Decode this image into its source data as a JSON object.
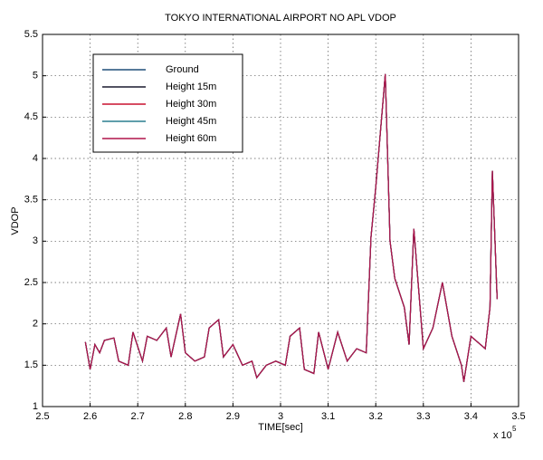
{
  "chart_data": {
    "type": "line",
    "title": "TOKYO INTERNATIONAL AIRPORT NO APL VDOP",
    "xlabel": "TIME[sec]",
    "ylabel": "VDOP",
    "x_multiplier": "x 10",
    "x_exponent": "5",
    "x": [
      2.59,
      2.6,
      2.61,
      2.62,
      2.63,
      2.65,
      2.66,
      2.68,
      2.69,
      2.71,
      2.72,
      2.74,
      2.76,
      2.77,
      2.79,
      2.8,
      2.82,
      2.84,
      2.85,
      2.87,
      2.88,
      2.9,
      2.92,
      2.94,
      2.95,
      2.97,
      2.99,
      3.01,
      3.02,
      3.04,
      3.05,
      3.07,
      3.08,
      3.1,
      3.12,
      3.14,
      3.16,
      3.18,
      3.19,
      3.2,
      3.22,
      3.23,
      3.24,
      3.26,
      3.27,
      3.28,
      3.3,
      3.32,
      3.34,
      3.36,
      3.38,
      3.385,
      3.4,
      3.43,
      3.44,
      3.445,
      3.455
    ],
    "series": [
      {
        "name": "Ground",
        "color": "#1f4e79",
        "values": [
          1.78,
          1.45,
          1.75,
          1.65,
          1.8,
          1.83,
          1.55,
          1.5,
          1.9,
          1.55,
          1.85,
          1.8,
          1.95,
          1.6,
          2.12,
          1.65,
          1.55,
          1.6,
          1.95,
          2.05,
          1.6,
          1.75,
          1.5,
          1.55,
          1.35,
          1.5,
          1.55,
          1.5,
          1.85,
          1.95,
          1.45,
          1.4,
          1.9,
          1.45,
          1.9,
          1.55,
          1.7,
          1.65,
          3.05,
          3.65,
          5.02,
          3.0,
          2.55,
          2.2,
          1.75,
          3.15,
          1.7,
          1.95,
          2.5,
          1.85,
          1.5,
          1.3,
          1.85,
          1.7,
          2.2,
          3.85,
          2.3
        ]
      },
      {
        "name": "Height 15m",
        "color": "#1a1a2e",
        "values": [
          1.78,
          1.45,
          1.75,
          1.65,
          1.8,
          1.83,
          1.55,
          1.5,
          1.9,
          1.55,
          1.85,
          1.8,
          1.95,
          1.6,
          2.12,
          1.65,
          1.55,
          1.6,
          1.95,
          2.05,
          1.6,
          1.75,
          1.5,
          1.55,
          1.35,
          1.5,
          1.55,
          1.5,
          1.85,
          1.95,
          1.45,
          1.4,
          1.9,
          1.45,
          1.9,
          1.55,
          1.7,
          1.65,
          3.05,
          3.65,
          5.02,
          3.0,
          2.55,
          2.2,
          1.75,
          3.15,
          1.7,
          1.95,
          2.5,
          1.85,
          1.5,
          1.3,
          1.85,
          1.7,
          2.2,
          3.85,
          2.3
        ]
      },
      {
        "name": "Height 30m",
        "color": "#c8102e",
        "values": [
          1.78,
          1.45,
          1.75,
          1.65,
          1.8,
          1.83,
          1.55,
          1.5,
          1.9,
          1.55,
          1.85,
          1.8,
          1.95,
          1.6,
          2.12,
          1.65,
          1.55,
          1.6,
          1.95,
          2.05,
          1.6,
          1.75,
          1.5,
          1.55,
          1.35,
          1.5,
          1.55,
          1.5,
          1.85,
          1.95,
          1.45,
          1.4,
          1.9,
          1.45,
          1.9,
          1.55,
          1.7,
          1.65,
          3.05,
          3.65,
          5.02,
          3.0,
          2.55,
          2.2,
          1.75,
          3.15,
          1.7,
          1.95,
          2.5,
          1.85,
          1.5,
          1.3,
          1.85,
          1.7,
          2.2,
          3.85,
          2.3
        ]
      },
      {
        "name": "Height 45m",
        "color": "#2a7f8f",
        "values": [
          1.78,
          1.45,
          1.75,
          1.65,
          1.8,
          1.83,
          1.55,
          1.5,
          1.9,
          1.55,
          1.85,
          1.8,
          1.95,
          1.6,
          2.12,
          1.65,
          1.55,
          1.6,
          1.95,
          2.05,
          1.6,
          1.75,
          1.5,
          1.55,
          1.35,
          1.5,
          1.55,
          1.5,
          1.85,
          1.95,
          1.45,
          1.4,
          1.9,
          1.45,
          1.9,
          1.55,
          1.7,
          1.65,
          3.05,
          3.65,
          5.02,
          3.0,
          2.55,
          2.2,
          1.75,
          3.15,
          1.7,
          1.95,
          2.5,
          1.85,
          1.5,
          1.3,
          1.85,
          1.7,
          2.2,
          3.85,
          2.3
        ]
      },
      {
        "name": "Height 60m",
        "color": "#b0134a",
        "values": [
          1.78,
          1.45,
          1.75,
          1.65,
          1.8,
          1.83,
          1.55,
          1.5,
          1.9,
          1.55,
          1.85,
          1.8,
          1.95,
          1.6,
          2.12,
          1.65,
          1.55,
          1.6,
          1.95,
          2.05,
          1.6,
          1.75,
          1.5,
          1.55,
          1.35,
          1.5,
          1.55,
          1.5,
          1.85,
          1.95,
          1.45,
          1.4,
          1.9,
          1.45,
          1.9,
          1.55,
          1.7,
          1.65,
          3.05,
          3.65,
          5.02,
          3.0,
          2.55,
          2.2,
          1.75,
          3.15,
          1.7,
          1.95,
          2.5,
          1.85,
          1.5,
          1.3,
          1.85,
          1.7,
          2.2,
          3.85,
          2.3
        ]
      }
    ],
    "xlim": [
      2.5,
      3.5
    ],
    "xticks": [
      2.5,
      2.6,
      2.7,
      2.8,
      2.9,
      3,
      3.1,
      3.2,
      3.3,
      3.4,
      3.5
    ],
    "ylim": [
      1,
      5.5
    ],
    "yticks": [
      1,
      1.5,
      2,
      2.5,
      3,
      3.5,
      4,
      4.5,
      5,
      5.5
    ],
    "grid": true,
    "legend": "upper left"
  }
}
